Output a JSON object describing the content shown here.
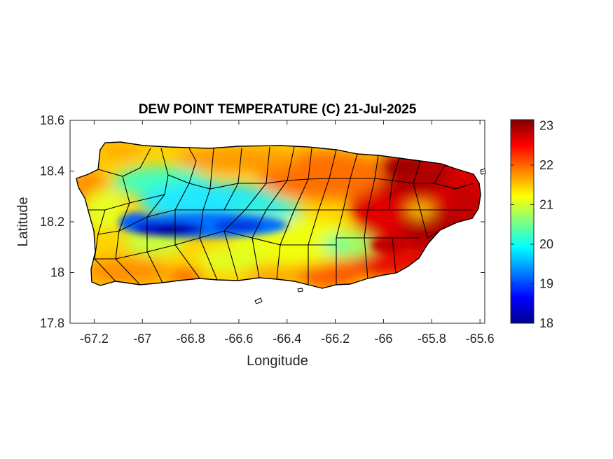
{
  "title": "DEW POINT TEMPERATURE (C) 21-Jul-2025",
  "map": {
    "xlabel": "Longitude",
    "ylabel": "Latitude",
    "xlim": [
      -67.3,
      -65.58
    ],
    "ylim": [
      17.8,
      18.6
    ],
    "xticks": [
      -67.2,
      -67,
      -66.8,
      -66.6,
      -66.4,
      -66.2,
      -66,
      -65.8,
      -65.6
    ],
    "yticks": [
      17.8,
      18,
      18.2,
      18.4,
      18.6
    ],
    "xtick_labels": [
      "-67.2",
      "-67",
      "-66.8",
      "-66.6",
      "-66.4",
      "-66.2",
      "-66",
      "-65.8",
      "-65.6"
    ],
    "ytick_labels": [
      "17.8",
      "18",
      "18.2",
      "18.4",
      "18.6"
    ],
    "region": "Puerto Rico municipalities",
    "colormap": "jet",
    "boundary_color": "#000000",
    "box": true
  },
  "colorbar": {
    "min": 18,
    "max": 23.15,
    "ticks": [
      18,
      19,
      20,
      21,
      22,
      23
    ],
    "tick_labels": [
      "18",
      "19",
      "20",
      "21",
      "22",
      "23"
    ],
    "stops": [
      "#00008f",
      "#0000ff",
      "#0080ff",
      "#00ffff",
      "#80ff80",
      "#ffff00",
      "#ff8000",
      "#ff0000",
      "#800000"
    ]
  },
  "chart_data": {
    "type": "heatmap",
    "title": "DEW POINT TEMPERATURE (C) 21-Jul-2025",
    "xlabel": "Longitude",
    "ylabel": "Latitude",
    "xlim": [
      -67.3,
      -65.58
    ],
    "ylim": [
      17.8,
      18.6
    ],
    "value_range": [
      18,
      23.15
    ],
    "approx_field_samples": [
      {
        "lon": -67.2,
        "lat": 18.38,
        "value": 21.8
      },
      {
        "lon": -67.05,
        "lat": 18.45,
        "value": 21.3
      },
      {
        "lon": -66.9,
        "lat": 18.3,
        "value": 20.0
      },
      {
        "lon": -66.9,
        "lat": 18.17,
        "value": 18.5
      },
      {
        "lon": -66.75,
        "lat": 18.15,
        "value": 18.8
      },
      {
        "lon": -66.6,
        "lat": 18.17,
        "value": 19.2
      },
      {
        "lon": -66.7,
        "lat": 18.05,
        "value": 21.0
      },
      {
        "lon": -67.15,
        "lat": 18.0,
        "value": 21.7
      },
      {
        "lon": -66.5,
        "lat": 18.35,
        "value": 21.0
      },
      {
        "lon": -66.3,
        "lat": 18.3,
        "value": 21.8
      },
      {
        "lon": -66.4,
        "lat": 17.98,
        "value": 21.6
      },
      {
        "lon": -66.2,
        "lat": 18.1,
        "value": 20.6
      },
      {
        "lon": -66.0,
        "lat": 18.35,
        "value": 22.8
      },
      {
        "lon": -65.8,
        "lat": 18.2,
        "value": 23.0
      },
      {
        "lon": -65.7,
        "lat": 18.32,
        "value": 22.9
      },
      {
        "lon": -66.05,
        "lat": 18.0,
        "value": 22.5
      }
    ]
  }
}
